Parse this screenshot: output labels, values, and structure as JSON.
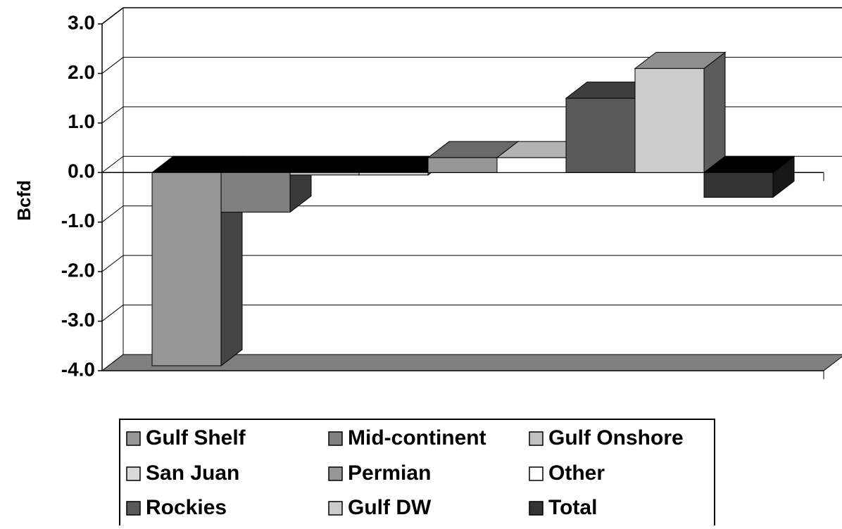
{
  "chart_data": {
    "type": "bar",
    "y_label": "Bcfd",
    "series": [
      {
        "name": "Gulf Shelf",
        "color": "#969696",
        "values": [
          -3.9
        ]
      },
      {
        "name": "Mid-continent",
        "color": "#808080",
        "values": [
          -0.8
        ]
      },
      {
        "name": "Gulf Onshore",
        "color": "#c0c0c0",
        "values": [
          -0.05
        ]
      },
      {
        "name": "San Juan",
        "color": "#d9d9d9",
        "values": [
          -0.05
        ]
      },
      {
        "name": "Permian",
        "color": "#969696",
        "values": [
          0.3
        ]
      },
      {
        "name": "Other",
        "color": "#ffffff",
        "values": [
          0.3
        ]
      },
      {
        "name": "Rockies",
        "color": "#595959",
        "values": [
          1.5
        ]
      },
      {
        "name": "Gulf DW",
        "color": "#cccccc",
        "values": [
          2.1
        ]
      },
      {
        "name": "Total",
        "color": "#333333",
        "values": [
          -0.5
        ]
      }
    ],
    "ylim": [
      -4,
      3
    ],
    "yticks": [
      {
        "value": -4,
        "label": "-4.0"
      },
      {
        "value": -3,
        "label": "-3.0"
      },
      {
        "value": -2,
        "label": "-2.0"
      },
      {
        "value": -1,
        "label": "-1.0"
      },
      {
        "value": 0,
        "label": "0.0"
      },
      {
        "value": 1,
        "label": "1.0"
      },
      {
        "value": 2,
        "label": "2.0"
      },
      {
        "value": 3,
        "label": "3.0"
      }
    ],
    "grid": true,
    "legend": "bottom"
  }
}
